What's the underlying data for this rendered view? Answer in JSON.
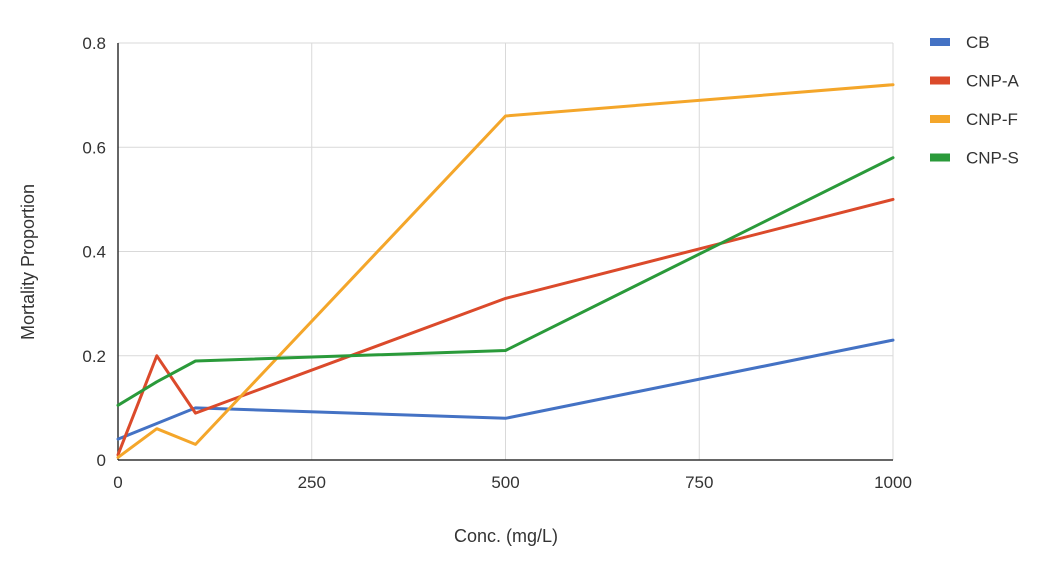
{
  "chart_data": {
    "type": "line",
    "title": "",
    "xlabel": "Conc. (mg/L)",
    "ylabel": "Mortality Proportion",
    "xlim": [
      0,
      1000
    ],
    "ylim": [
      0,
      0.8
    ],
    "x_ticks": [
      0,
      250,
      500,
      750,
      1000
    ],
    "y_ticks": [
      0,
      0.2,
      0.4,
      0.6,
      0.8
    ],
    "x_tick_labels": [
      "0",
      "250",
      "500",
      "750",
      "1000"
    ],
    "y_tick_labels": [
      "0",
      "0.2",
      "0.4",
      "0.6",
      "0.8"
    ],
    "grid": true,
    "legend_position": "right",
    "x": [
      0,
      50,
      100,
      500,
      1000
    ],
    "series": [
      {
        "name": "CB",
        "color": "#4472c4",
        "values": [
          0.04,
          0.07,
          0.1,
          0.08,
          0.23
        ]
      },
      {
        "name": "CNP-A",
        "color": "#db4a2b",
        "values": [
          0.01,
          0.2,
          0.09,
          0.31,
          0.5
        ]
      },
      {
        "name": "CNP-F",
        "color": "#f4a62a",
        "values": [
          0.005,
          0.06,
          0.03,
          0.66,
          0.72
        ]
      },
      {
        "name": "CNP-S",
        "color": "#2a9a3a",
        "values": [
          0.105,
          0.15,
          0.19,
          0.21,
          0.58
        ]
      }
    ]
  }
}
